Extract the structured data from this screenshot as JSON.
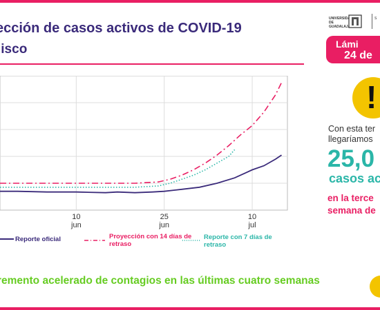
{
  "title": "ección de casos activos de COVID-19",
  "subtitle": "lisco",
  "logo_text": "UNIVERSIDAD DE GUADALAJARA",
  "logo_text_2": "S",
  "badge": {
    "line1": "Lámi",
    "line2": "24 de"
  },
  "panel": {
    "alert_symbol": "!",
    "text": "Con esta ter llegaríamos",
    "big_number": "25,0",
    "casos": "casos ac",
    "third": "en la terce semana de"
  },
  "footnote": "remento acelerado de contagios en las últimas cuatro semanas",
  "colors": {
    "official": "#3a2a7a",
    "proj14": "#e91e63",
    "proj7": "#2bb6a8",
    "accent": "#e91e63",
    "footnote": "#66cc22"
  },
  "chart_data": {
    "type": "line",
    "x_ticks": [
      {
        "day": 10,
        "label_top": "10",
        "label_bottom": "jun"
      },
      {
        "day": 25,
        "label_top": "25",
        "label_bottom": "jun"
      },
      {
        "day": 40,
        "label_top": "10",
        "label_bottom": "jul"
      }
    ],
    "xlim": [
      -3,
      46
    ],
    "ylim": [
      0,
      100
    ],
    "grid": true,
    "legend": "bottom",
    "series": [
      {
        "name": "Reporte oficial",
        "color": "#3a2a7a",
        "style": "solid",
        "x": [
          -3,
          0,
          5,
          10,
          15,
          17,
          20,
          23,
          25,
          28,
          31,
          34,
          37,
          39,
          40,
          42,
          44,
          45
        ],
        "y": [
          14,
          14,
          13.5,
          13.5,
          13,
          13.5,
          13,
          13.5,
          14,
          15.5,
          17,
          20,
          24,
          28,
          30,
          33,
          38,
          41
        ]
      },
      {
        "name": "Proyección con 14 días de retraso",
        "color": "#e91e63",
        "style": "dashdot",
        "x": [
          -3,
          0,
          10,
          20,
          24,
          26,
          28,
          30,
          32,
          34,
          36,
          38,
          40,
          42,
          44,
          45
        ],
        "y": [
          20,
          20,
          20,
          20,
          21,
          23,
          26,
          30,
          35,
          41,
          48,
          56,
          63,
          73,
          86,
          95
        ]
      },
      {
        "name": "Reporte con 7 días de retraso",
        "color": "#2bb6a8",
        "style": "dotted",
        "x": [
          -3,
          0,
          10,
          20,
          24,
          26,
          28,
          30,
          32,
          34,
          36,
          37
        ],
        "y": [
          17,
          17,
          17,
          17,
          18,
          20,
          23,
          26,
          30,
          35,
          40,
          45
        ]
      }
    ]
  }
}
